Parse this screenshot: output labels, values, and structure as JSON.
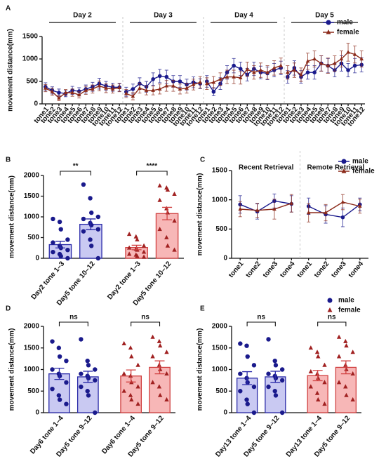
{
  "chart_data": [
    {
      "type": "line",
      "panel": "A",
      "ylabel": "movement distance(mm)",
      "groups": [
        "Day 2",
        "Day 3",
        "Day 4",
        "Day 5"
      ],
      "categories": [
        "tone1",
        "tone2",
        "tone3",
        "tone4",
        "tone5",
        "tone6",
        "tone7",
        "tone8",
        "tone9",
        "tone10",
        "tone11",
        "tone12",
        "tone1",
        "tone2",
        "tone3",
        "tone4",
        "tone5",
        "tone6",
        "tone7",
        "tone8",
        "tone9",
        "tone10",
        "tone11",
        "tone12",
        "tone1",
        "tone2",
        "tone3",
        "tone4",
        "tone5",
        "tone6",
        "tone7",
        "tone8",
        "tone9",
        "tone10",
        "tone11",
        "tone12",
        "tone1",
        "tone2",
        "tone3",
        "tone4",
        "tone5",
        "tone6",
        "tone7",
        "tone8",
        "tone9",
        "tone10",
        "tone11",
        "tone12"
      ],
      "series": [
        {
          "name": "male",
          "color": "#1a1a8c",
          "marker": "circle",
          "values": [
            380,
            300,
            250,
            230,
            300,
            280,
            330,
            380,
            450,
            400,
            370,
            370,
            270,
            330,
            450,
            380,
            550,
            620,
            600,
            500,
            500,
            430,
            480,
            450,
            500,
            270,
            450,
            700,
            850,
            780,
            650,
            780,
            700,
            680,
            750,
            800,
            600,
            800,
            600,
            700,
            700,
            900,
            850,
            750,
            900,
            750,
            850,
            870
          ],
          "errors": [
            90,
            80,
            80,
            70,
            90,
            80,
            90,
            100,
            120,
            100,
            90,
            90,
            100,
            110,
            130,
            120,
            140,
            150,
            150,
            130,
            130,
            120,
            120,
            110,
            130,
            90,
            130,
            150,
            160,
            150,
            140,
            150,
            140,
            140,
            150,
            150,
            140,
            160,
            140,
            150,
            150,
            170,
            160,
            150,
            170,
            150,
            160,
            160
          ]
        },
        {
          "name": "female",
          "color": "#8b2a1a",
          "marker": "triangle",
          "values": [
            350,
            270,
            130,
            250,
            250,
            200,
            300,
            330,
            400,
            350,
            330,
            360,
            230,
            170,
            350,
            300,
            300,
            330,
            400,
            400,
            330,
            350,
            430,
            480,
            450,
            480,
            550,
            600,
            600,
            580,
            770,
            700,
            750,
            700,
            800,
            850,
            700,
            750,
            650,
            950,
            1000,
            900,
            850,
            900,
            1000,
            1150,
            1100,
            1000
          ],
          "errors": [
            80,
            80,
            60,
            70,
            80,
            70,
            90,
            90,
            110,
            100,
            90,
            90,
            90,
            80,
            110,
            100,
            100,
            110,
            120,
            120,
            110,
            110,
            120,
            130,
            130,
            130,
            140,
            150,
            150,
            140,
            160,
            150,
            160,
            150,
            160,
            170,
            150,
            160,
            150,
            180,
            180,
            170,
            170,
            170,
            180,
            200,
            190,
            180
          ]
        }
      ],
      "ylim": [
        0,
        1500
      ],
      "yticks": [
        0,
        500,
        1000,
        1500
      ]
    },
    {
      "type": "bar",
      "panel": "B",
      "ylabel": "movement distance(mm)",
      "categories": [
        "Day2 tone 1–3",
        "Day5 tone 10–12",
        "Day2 tone 1–3",
        "Day5 tone 10–12"
      ],
      "values": [
        330,
        820,
        260,
        1080
      ],
      "errors": [
        80,
        130,
        55,
        150
      ],
      "points": [
        [
          950,
          880,
          700,
          450,
          380,
          300,
          250,
          200,
          150,
          100,
          50,
          0
        ],
        [
          1780,
          1450,
          1100,
          1000,
          950,
          850,
          800,
          700,
          650,
          450,
          300,
          0
        ],
        [
          580,
          520,
          450,
          300,
          250,
          220,
          200,
          150,
          100,
          80,
          50,
          30
        ],
        [
          1750,
          1700,
          1650,
          1550,
          1400,
          1200,
          1100,
          900,
          700,
          500,
          300,
          200
        ]
      ],
      "fills": [
        "#c9c9f2",
        "#c9c9f2",
        "#f7b7b7",
        "#f7b7b7"
      ],
      "edges": [
        "#2a2aa8",
        "#2a2aa8",
        "#d04040",
        "#d04040"
      ],
      "point_colors": [
        "#1a1a8c",
        "#1a1a8c",
        "#a02020",
        "#a02020"
      ],
      "point_markers": [
        "circle",
        "circle",
        "triangle",
        "triangle"
      ],
      "annotations": [
        "**",
        "****"
      ],
      "ylim": [
        0,
        2000
      ],
      "yticks": [
        0,
        500,
        1000,
        1500,
        2000
      ]
    },
    {
      "type": "line",
      "panel": "C",
      "ylabel": "movement distance(mm)",
      "groups": [
        "Recent Retrieval",
        "Remote Retrieval"
      ],
      "categories": [
        "tone1",
        "tone2",
        "tone3",
        "tone4",
        "tone1",
        "tone2",
        "tone3",
        "tone4"
      ],
      "series": [
        {
          "name": "male",
          "color": "#1a1a8c",
          "marker": "circle",
          "values": [
            920,
            800,
            980,
            930,
            890,
            750,
            700,
            920
          ],
          "errors": [
            150,
            130,
            120,
            140,
            140,
            150,
            160,
            110
          ]
        },
        {
          "name": "female",
          "color": "#8b2a1a",
          "marker": "triangle",
          "values": [
            840,
            820,
            840,
            940,
            780,
            780,
            960,
            890
          ],
          "errors": [
            130,
            120,
            170,
            150,
            160,
            140,
            130,
            120
          ]
        }
      ],
      "ylim": [
        0,
        1500
      ],
      "yticks": [
        0,
        500,
        1000,
        1500
      ]
    },
    {
      "type": "bar",
      "panel": "D",
      "ylabel": "movement distance(mm)",
      "categories": [
        "Day6 tone 1–4",
        "Day5 tone 9–12",
        "Day6 tone 1–4",
        "Day5 tone 9–12"
      ],
      "values": [
        900,
        830,
        850,
        1050
      ],
      "errors": [
        130,
        130,
        140,
        150
      ],
      "points": [
        [
          1650,
          1500,
          1300,
          1200,
          1000,
          900,
          850,
          700,
          550,
          400,
          300,
          200
        ],
        [
          1700,
          1200,
          1100,
          1000,
          900,
          850,
          800,
          750,
          600,
          500,
          400,
          0
        ],
        [
          1600,
          1500,
          1300,
          1100,
          900,
          850,
          700,
          600,
          500,
          400,
          300,
          200
        ],
        [
          1750,
          1650,
          1550,
          1400,
          1300,
          1100,
          1000,
          900,
          700,
          600,
          400,
          300
        ]
      ],
      "fills": [
        "#c9c9f2",
        "#c9c9f2",
        "#f7b7b7",
        "#f7b7b7"
      ],
      "edges": [
        "#2a2aa8",
        "#2a2aa8",
        "#d04040",
        "#d04040"
      ],
      "point_colors": [
        "#1a1a8c",
        "#1a1a8c",
        "#a02020",
        "#a02020"
      ],
      "point_markers": [
        "circle",
        "circle",
        "triangle",
        "triangle"
      ],
      "annotations": [
        "ns",
        "ns"
      ],
      "ylim": [
        0,
        2000
      ],
      "yticks": [
        0,
        500,
        1000,
        1500,
        2000
      ]
    },
    {
      "type": "bar",
      "panel": "E",
      "ylabel": "movement distance(mm)",
      "categories": [
        "Day13 tone 1–4",
        "Day5 tone 9–12",
        "Day13 tone 1–4",
        "Day5 tone 9–12"
      ],
      "values": [
        800,
        830,
        860,
        1050
      ],
      "errors": [
        150,
        130,
        120,
        150
      ],
      "points": [
        [
          1600,
          1550,
          1300,
          1100,
          900,
          800,
          700,
          600,
          500,
          300,
          200,
          0
        ],
        [
          1700,
          1200,
          1100,
          1000,
          900,
          850,
          800,
          750,
          600,
          500,
          400,
          0
        ],
        [
          1500,
          1400,
          1300,
          1100,
          950,
          900,
          800,
          700,
          600,
          450,
          300,
          200
        ],
        [
          1750,
          1650,
          1550,
          1400,
          1300,
          1100,
          1000,
          900,
          700,
          600,
          400,
          300
        ]
      ],
      "fills": [
        "#c9c9f2",
        "#c9c9f2",
        "#f7b7b7",
        "#f7b7b7"
      ],
      "edges": [
        "#2a2aa8",
        "#2a2aa8",
        "#d04040",
        "#d04040"
      ],
      "point_colors": [
        "#1a1a8c",
        "#1a1a8c",
        "#a02020",
        "#a02020"
      ],
      "point_markers": [
        "circle",
        "circle",
        "triangle",
        "triangle"
      ],
      "annotations": [
        "ns",
        "ns"
      ],
      "legend": [
        {
          "name": "male",
          "color": "#1a1a8c",
          "marker": "circle"
        },
        {
          "name": "female",
          "color": "#a02020",
          "marker": "triangle"
        }
      ],
      "ylim": [
        0,
        2000
      ],
      "yticks": [
        0,
        500,
        1000,
        1500,
        2000
      ]
    }
  ]
}
